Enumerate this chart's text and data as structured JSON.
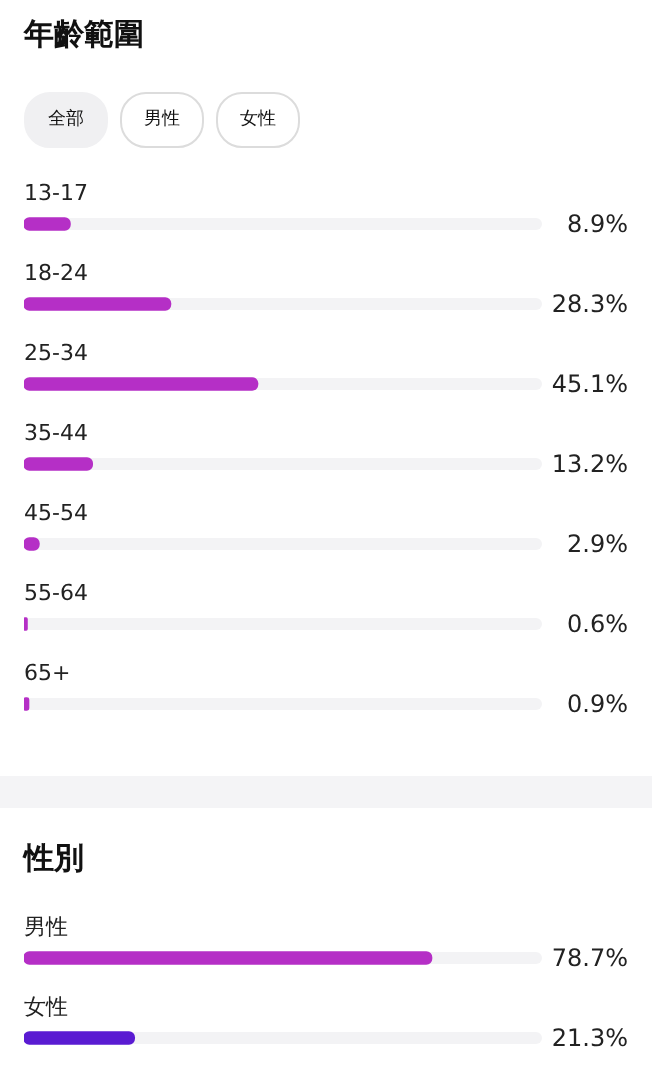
{
  "chart_data": [
    {
      "type": "bar",
      "orientation": "horizontal",
      "title": "年齡範圍",
      "annotations": [
        "全部",
        "男性",
        "女性"
      ],
      "categories": [
        "13-17",
        "18-24",
        "25-34",
        "35-44",
        "45-54",
        "55-64",
        "65+"
      ],
      "values": [
        8.9,
        28.3,
        45.1,
        13.2,
        2.9,
        0.6,
        0.9
      ],
      "value_labels": [
        "8.9%",
        "28.3%",
        "45.1%",
        "13.2%",
        "2.9%",
        "0.6%",
        "0.9%"
      ],
      "color": "#b52fc6",
      "xlim": [
        0,
        100
      ]
    },
    {
      "type": "bar",
      "orientation": "horizontal",
      "title": "性別",
      "categories": [
        "男性",
        "女性"
      ],
      "values": [
        78.7,
        21.3
      ],
      "value_labels": [
        "78.7%",
        "21.3%"
      ],
      "colors": [
        "#b52fc6",
        "#5a1bd2"
      ],
      "xlim": [
        0,
        100
      ]
    }
  ]
}
